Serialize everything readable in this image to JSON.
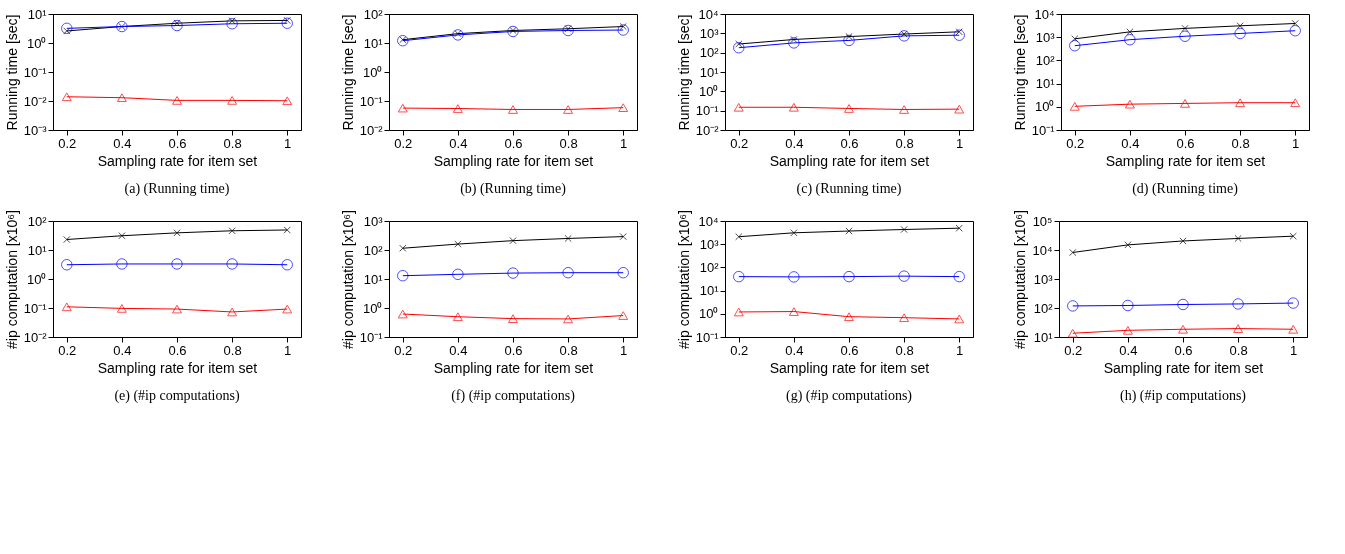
{
  "chart_data": [
    {
      "type": "line",
      "title": "(a) (Running time)",
      "xlabel": "Sampling rate for item set",
      "ylabel": "Running time [sec]",
      "log": "y",
      "x": [
        0.2,
        0.4,
        0.6,
        0.8,
        1
      ],
      "xlim": [
        0.15,
        1.05
      ],
      "xticks": [
        0.2,
        0.4,
        0.6,
        0.8,
        1
      ],
      "ylim": [
        0.001,
        10
      ],
      "yticks": [
        {
          "value": 0.001,
          "label": "10⁻³"
        },
        {
          "value": 0.01,
          "label": "10⁻²"
        },
        {
          "value": 0.1,
          "label": "10⁻¹"
        },
        {
          "value": 1,
          "label": "10⁰"
        },
        {
          "value": 10,
          "label": "10¹"
        }
      ],
      "series": [
        {
          "color": "#000000",
          "marker": "cross",
          "values": [
            2.6,
            3.7,
            4.8,
            5.8,
            6.0
          ]
        },
        {
          "color": "#0000ff",
          "marker": "circle",
          "values": [
            3.2,
            3.7,
            4.0,
            4.6,
            4.8
          ]
        },
        {
          "color": "#ff0000",
          "marker": "triangle",
          "values": [
            0.014,
            0.013,
            0.0105,
            0.0105,
            0.0102
          ]
        }
      ]
    },
    {
      "type": "line",
      "title": "(b) (Running time)",
      "xlabel": "Sampling rate for item set",
      "ylabel": "Running time [sec]",
      "log": "y",
      "x": [
        0.2,
        0.4,
        0.6,
        0.8,
        1
      ],
      "xlim": [
        0.15,
        1.05
      ],
      "xticks": [
        0.2,
        0.4,
        0.6,
        0.8,
        1
      ],
      "ylim": [
        0.01,
        100
      ],
      "yticks": [
        {
          "value": 0.01,
          "label": "10⁻²"
        },
        {
          "value": 0.1,
          "label": "10⁻¹"
        },
        {
          "value": 1,
          "label": "10⁰"
        },
        {
          "value": 10,
          "label": "10¹"
        },
        {
          "value": 100,
          "label": "10²"
        }
      ],
      "series": [
        {
          "color": "#000000",
          "marker": "cross",
          "values": [
            13,
            21,
            27,
            31,
            37
          ]
        },
        {
          "color": "#0000ff",
          "marker": "circle",
          "values": [
            12,
            19,
            25,
            27,
            28
          ]
        },
        {
          "color": "#ff0000",
          "marker": "triangle",
          "values": [
            0.057,
            0.055,
            0.051,
            0.051,
            0.059
          ]
        }
      ]
    },
    {
      "type": "line",
      "title": "(c) (Running time)",
      "xlabel": "Sampling rate for item set",
      "ylabel": "Running time [sec]",
      "log": "y",
      "x": [
        0.2,
        0.4,
        0.6,
        0.8,
        1
      ],
      "xlim": [
        0.15,
        1.05
      ],
      "xticks": [
        0.2,
        0.4,
        0.6,
        0.8,
        1
      ],
      "ylim": [
        0.01,
        10000
      ],
      "yticks": [
        {
          "value": 0.01,
          "label": "10⁻²"
        },
        {
          "value": 0.1,
          "label": "10⁻¹"
        },
        {
          "value": 1,
          "label": "10⁰"
        },
        {
          "value": 10,
          "label": "10¹"
        },
        {
          "value": 100,
          "label": "10²"
        },
        {
          "value": 1000,
          "label": "10³"
        },
        {
          "value": 10000,
          "label": "10⁴"
        }
      ],
      "series": [
        {
          "color": "#000000",
          "marker": "cross",
          "values": [
            280,
            480,
            680,
            920,
            1200
          ]
        },
        {
          "color": "#0000ff",
          "marker": "circle",
          "values": [
            180,
            320,
            430,
            740,
            800
          ]
        },
        {
          "color": "#ff0000",
          "marker": "triangle",
          "values": [
            0.15,
            0.15,
            0.13,
            0.115,
            0.12
          ]
        }
      ]
    },
    {
      "type": "line",
      "title": "(d) (Running time)",
      "xlabel": "Sampling rate for item set",
      "ylabel": "Running time [sec]",
      "log": "y",
      "x": [
        0.2,
        0.4,
        0.6,
        0.8,
        1
      ],
      "xlim": [
        0.15,
        1.05
      ],
      "xticks": [
        0.2,
        0.4,
        0.6,
        0.8,
        1
      ],
      "ylim": [
        0.1,
        10000
      ],
      "yticks": [
        {
          "value": 0.1,
          "label": "10⁻¹"
        },
        {
          "value": 1,
          "label": "10⁰"
        },
        {
          "value": 10,
          "label": "10¹"
        },
        {
          "value": 100,
          "label": "10²"
        },
        {
          "value": 1000,
          "label": "10³"
        },
        {
          "value": 10000,
          "label": "10⁴"
        }
      ],
      "series": [
        {
          "color": "#000000",
          "marker": "cross",
          "values": [
            850,
            1700,
            2400,
            3100,
            3900
          ]
        },
        {
          "color": "#0000ff",
          "marker": "circle",
          "values": [
            430,
            780,
            1100,
            1450,
            1900
          ]
        },
        {
          "color": "#ff0000",
          "marker": "triangle",
          "values": [
            1.05,
            1.3,
            1.4,
            1.5,
            1.5
          ]
        }
      ]
    },
    {
      "type": "line",
      "title": "(e) (#ip computations)",
      "xlabel": "Sampling rate for item set",
      "ylabel": "#ip computation [x10⁶]",
      "log": "y",
      "x": [
        0.2,
        0.4,
        0.6,
        0.8,
        1
      ],
      "xlim": [
        0.15,
        1.05
      ],
      "xticks": [
        0.2,
        0.4,
        0.6,
        0.8,
        1
      ],
      "ylim": [
        0.01,
        100
      ],
      "yticks": [
        {
          "value": 0.01,
          "label": "10⁻²"
        },
        {
          "value": 0.1,
          "label": "10⁻¹"
        },
        {
          "value": 1,
          "label": "10⁰"
        },
        {
          "value": 10,
          "label": "10¹"
        },
        {
          "value": 100,
          "label": "10²"
        }
      ],
      "series": [
        {
          "color": "#000000",
          "marker": "cross",
          "values": [
            23,
            31,
            39,
            46,
            49
          ]
        },
        {
          "color": "#0000ff",
          "marker": "circle",
          "values": [
            3.1,
            3.3,
            3.3,
            3.3,
            3.1
          ]
        },
        {
          "color": "#ff0000",
          "marker": "triangle",
          "values": [
            0.11,
            0.097,
            0.092,
            0.073,
            0.092
          ]
        }
      ]
    },
    {
      "type": "line",
      "title": "(f) (#ip computations)",
      "xlabel": "Sampling rate for item set",
      "ylabel": "#ip computation [x10⁶]",
      "log": "y",
      "x": [
        0.2,
        0.4,
        0.6,
        0.8,
        1
      ],
      "xlim": [
        0.15,
        1.05
      ],
      "xticks": [
        0.2,
        0.4,
        0.6,
        0.8,
        1
      ],
      "ylim": [
        0.1,
        1000
      ],
      "yticks": [
        {
          "value": 0.1,
          "label": "10⁻¹"
        },
        {
          "value": 1,
          "label": "10⁰"
        },
        {
          "value": 10,
          "label": "10¹"
        },
        {
          "value": 100,
          "label": "10²"
        },
        {
          "value": 1000,
          "label": "10³"
        }
      ],
      "series": [
        {
          "color": "#000000",
          "marker": "cross",
          "values": [
            115,
            160,
            210,
            250,
            290
          ]
        },
        {
          "color": "#0000ff",
          "marker": "circle",
          "values": [
            13,
            14.5,
            16,
            16.5,
            16.5
          ]
        },
        {
          "color": "#ff0000",
          "marker": "triangle",
          "values": [
            0.62,
            0.5,
            0.43,
            0.42,
            0.55
          ]
        }
      ]
    },
    {
      "type": "line",
      "title": "(g) (#ip computations)",
      "xlabel": "Sampling rate for item set",
      "ylabel": "#ip computation [x10⁶]",
      "log": "y",
      "x": [
        0.2,
        0.4,
        0.6,
        0.8,
        1
      ],
      "xlim": [
        0.15,
        1.05
      ],
      "xticks": [
        0.2,
        0.4,
        0.6,
        0.8,
        1
      ],
      "ylim": [
        0.1,
        10000
      ],
      "yticks": [
        {
          "value": 0.1,
          "label": "10⁻¹"
        },
        {
          "value": 1,
          "label": "10⁰"
        },
        {
          "value": 10,
          "label": "10¹"
        },
        {
          "value": 100,
          "label": "10²"
        },
        {
          "value": 1000,
          "label": "10³"
        },
        {
          "value": 10000,
          "label": "10⁴"
        }
      ],
      "series": [
        {
          "color": "#000000",
          "marker": "cross",
          "values": [
            2100,
            3100,
            3700,
            4300,
            4900
          ]
        },
        {
          "color": "#0000ff",
          "marker": "circle",
          "values": [
            40,
            39,
            40,
            42,
            40
          ]
        },
        {
          "color": "#ff0000",
          "marker": "triangle",
          "values": [
            1.2,
            1.25,
            0.75,
            0.68,
            0.6
          ]
        }
      ]
    },
    {
      "type": "line",
      "title": "(h) (#ip computations)",
      "xlabel": "Sampling rate for item set",
      "ylabel": "#ip computation [x10⁶]",
      "log": "y",
      "x": [
        0.2,
        0.4,
        0.6,
        0.8,
        1
      ],
      "xlim": [
        0.15,
        1.05
      ],
      "xticks": [
        0.2,
        0.4,
        0.6,
        0.8,
        1
      ],
      "ylim": [
        10,
        100000
      ],
      "yticks": [
        {
          "value": 10,
          "label": "10¹"
        },
        {
          "value": 100,
          "label": "10²"
        },
        {
          "value": 1000,
          "label": "10³"
        },
        {
          "value": 10000,
          "label": "10⁴"
        },
        {
          "value": 100000,
          "label": "10⁵"
        }
      ],
      "series": [
        {
          "color": "#000000",
          "marker": "cross",
          "values": [
            8200,
            15000,
            20500,
            25000,
            30000
          ]
        },
        {
          "color": "#0000ff",
          "marker": "circle",
          "values": [
            118,
            122,
            132,
            138,
            148
          ]
        },
        {
          "color": "#ff0000",
          "marker": "triangle",
          "values": [
            13.5,
            17,
            18.5,
            19.5,
            18.5
          ]
        }
      ]
    }
  ]
}
